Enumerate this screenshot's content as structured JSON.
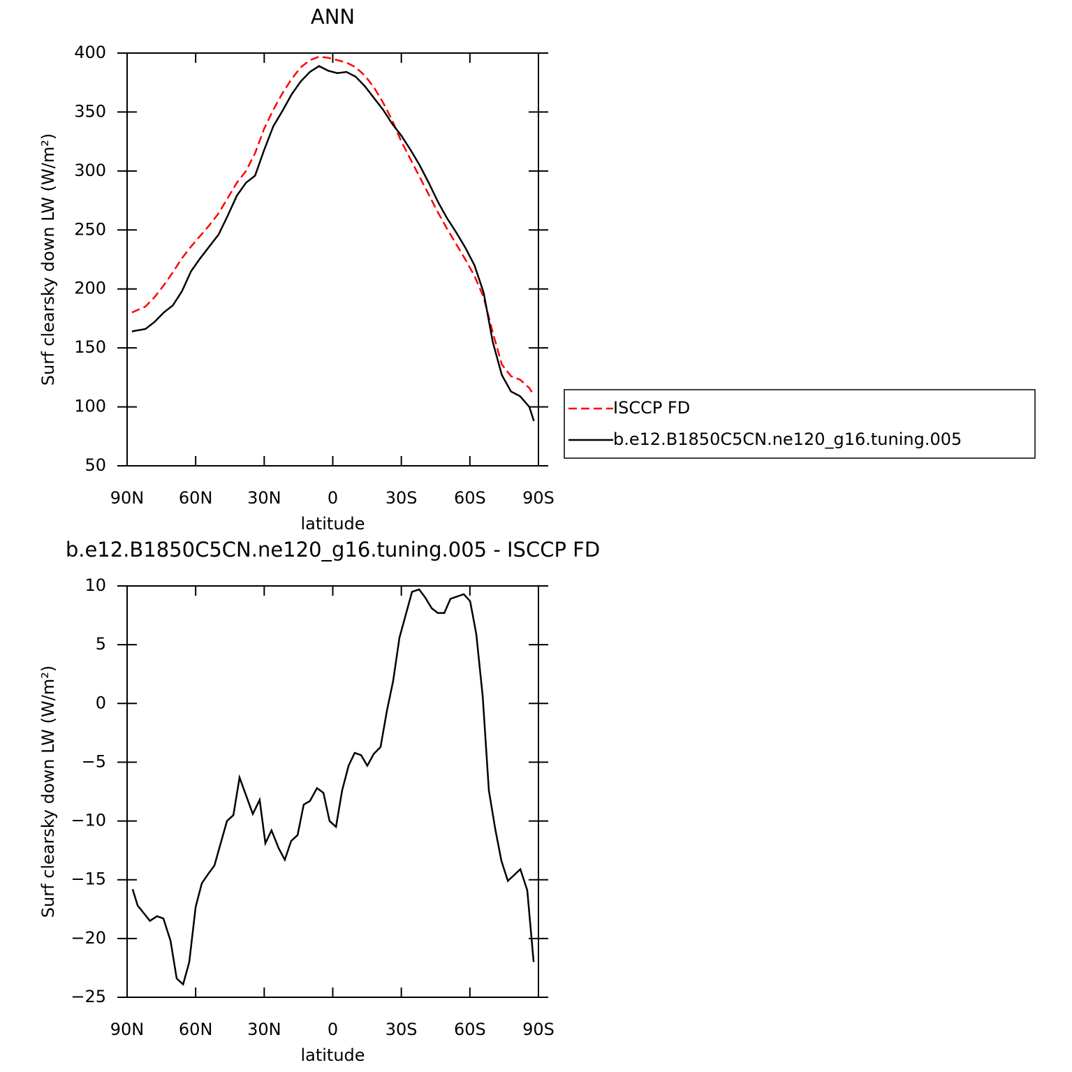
{
  "chart_data": [
    {
      "type": "line",
      "title": "ANN",
      "xlabel": "latitude",
      "ylabel": "Surf clearsky down LW (W/m²)",
      "xlim": [
        90,
        -90
      ],
      "xticks": [
        {
          "value": 90,
          "label": "90N"
        },
        {
          "value": 60,
          "label": "60N"
        },
        {
          "value": 30,
          "label": "30N"
        },
        0,
        {
          "value": -30,
          "label": "30S"
        },
        {
          "value": -60,
          "label": "60S"
        },
        {
          "value": -90,
          "label": "90S"
        }
      ],
      "ylim": [
        50,
        400
      ],
      "yticks": [
        50,
        100,
        150,
        200,
        250,
        300,
        350,
        400
      ],
      "legend": "right",
      "x": [
        87.9,
        82,
        78,
        74,
        70,
        66,
        62,
        58,
        54,
        50,
        46,
        42,
        38,
        34,
        30,
        26,
        22,
        18,
        14,
        10,
        6,
        2,
        -2,
        -6,
        -10,
        -14,
        -18,
        -22,
        -26,
        -30,
        -34,
        -38,
        -42,
        -46,
        -50,
        -54,
        -58,
        -62,
        -66,
        -70,
        -74,
        -78,
        -82,
        -86,
        -88
      ],
      "series": [
        {
          "name": "ISCCP FD",
          "color": "#ff0000",
          "linestyle": "dashed",
          "values": [
            180,
            185,
            193,
            203,
            214,
            226,
            236,
            245,
            254,
            264,
            277,
            290,
            300,
            315,
            336,
            352,
            366,
            378,
            388,
            394,
            397,
            396,
            394,
            392,
            388,
            381,
            371,
            358,
            343,
            325,
            310,
            295,
            280,
            265,
            251,
            238,
            225,
            211,
            193,
            163,
            136,
            126,
            123,
            116,
            110
          ]
        },
        {
          "name": "b.e12.B1850C5CN.ne120_g16.tuning.005",
          "color": "#000000",
          "linestyle": "solid",
          "values": [
            164,
            166,
            172,
            180,
            186,
            198,
            215,
            226,
            236,
            246,
            262,
            279,
            290,
            296,
            318,
            338,
            351,
            365,
            376,
            384,
            389,
            385,
            383,
            384,
            380,
            372,
            362,
            352,
            340,
            330,
            318,
            305,
            290,
            274,
            260,
            248,
            235,
            220,
            197,
            155,
            127,
            113,
            109,
            100,
            88
          ]
        }
      ]
    },
    {
      "type": "line",
      "title": "b.e12.B1850C5CN.ne120_g16.tuning.005 - ISCCP FD",
      "xlabel": "latitude",
      "ylabel": "Surf clearsky down LW (W/m²)",
      "xlim": [
        90,
        -90
      ],
      "xticks": [
        {
          "value": 90,
          "label": "90N"
        },
        {
          "value": 60,
          "label": "60N"
        },
        {
          "value": 30,
          "label": "30N"
        },
        0,
        {
          "value": -30,
          "label": "30S"
        },
        {
          "value": -60,
          "label": "60S"
        },
        {
          "value": -90,
          "label": "90S"
        }
      ],
      "ylim": [
        -25,
        10
      ],
      "yticks": [
        -25,
        -20,
        -15,
        -10,
        -5,
        0,
        5,
        10
      ],
      "ytick_labels": [
        "−25",
        "−20",
        "−15",
        "−10",
        "−5",
        "0",
        "5",
        "10"
      ],
      "x": [
        87.6,
        85.4,
        80,
        76.9,
        74.1,
        71,
        68.3,
        65.5,
        62.8,
        60,
        57.3,
        54.5,
        51.8,
        46.3,
        43.5,
        40.8,
        35,
        32,
        29.5,
        26.8,
        23.7,
        21,
        18.2,
        15.4,
        12.7,
        10,
        6.9,
        4.1,
        1.4,
        -1.4,
        -4.1,
        -6.9,
        -9.6,
        -12.4,
        -15.1,
        -17.9,
        -20.9,
        -23.7,
        -26.4,
        -29.2,
        -34.7,
        -37.8,
        -40.5,
        -43.3,
        -46,
        -48.8,
        -51.5,
        -57.3,
        -60.1,
        -62.8,
        -65.6,
        -68.3,
        -71.1,
        -73.8,
        -76.6,
        -82.1,
        -85.1,
        -87.9
      ],
      "series": [
        {
          "color": "#000000",
          "linestyle": "solid",
          "values": [
            -15.8,
            -17.2,
            -18.5,
            -18.1,
            -18.3,
            -20.2,
            -23.4,
            -23.9,
            -22,
            -17.3,
            -15.3,
            -14.5,
            -13.8,
            -10,
            -9.5,
            -6.3,
            -9.4,
            -8.2,
            -11.9,
            -10.8,
            -12.3,
            -13.3,
            -11.7,
            -11.2,
            -8.6,
            -8.3,
            -7.2,
            -7.6,
            -10,
            -10.5,
            -7.4,
            -5.3,
            -4.2,
            -4.4,
            -5.3,
            -4.3,
            -3.7,
            -0.6,
            1.9,
            5.6,
            9.5,
            9.7,
            9.0,
            8.1,
            7.7,
            7.7,
            8.9,
            9.3,
            8.7,
            5.9,
            0.6,
            -7.4,
            -10.7,
            -13.4,
            -15.1,
            -14.1,
            -15.9,
            -22
          ]
        }
      ]
    }
  ]
}
